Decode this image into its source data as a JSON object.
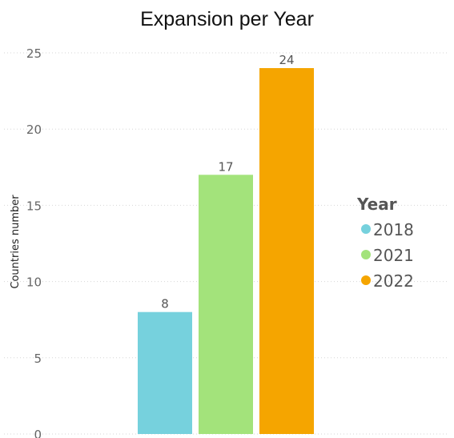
{
  "chart_data": {
    "type": "bar",
    "title": "Expansion per Year",
    "xlabel": "",
    "ylabel": "Countries number",
    "categories": [
      "2018",
      "2021",
      "2022"
    ],
    "values": [
      8,
      17,
      24
    ],
    "colors": [
      "#76D1DD",
      "#A3E37B",
      "#F5A500"
    ],
    "ylim": [
      0,
      25
    ],
    "yticks": [
      0,
      5,
      10,
      15,
      20,
      25
    ],
    "grid": true,
    "data_labels": true,
    "legend": {
      "title": "Year",
      "placement": "right",
      "entries": [
        "2018",
        "2021",
        "2022"
      ]
    }
  }
}
